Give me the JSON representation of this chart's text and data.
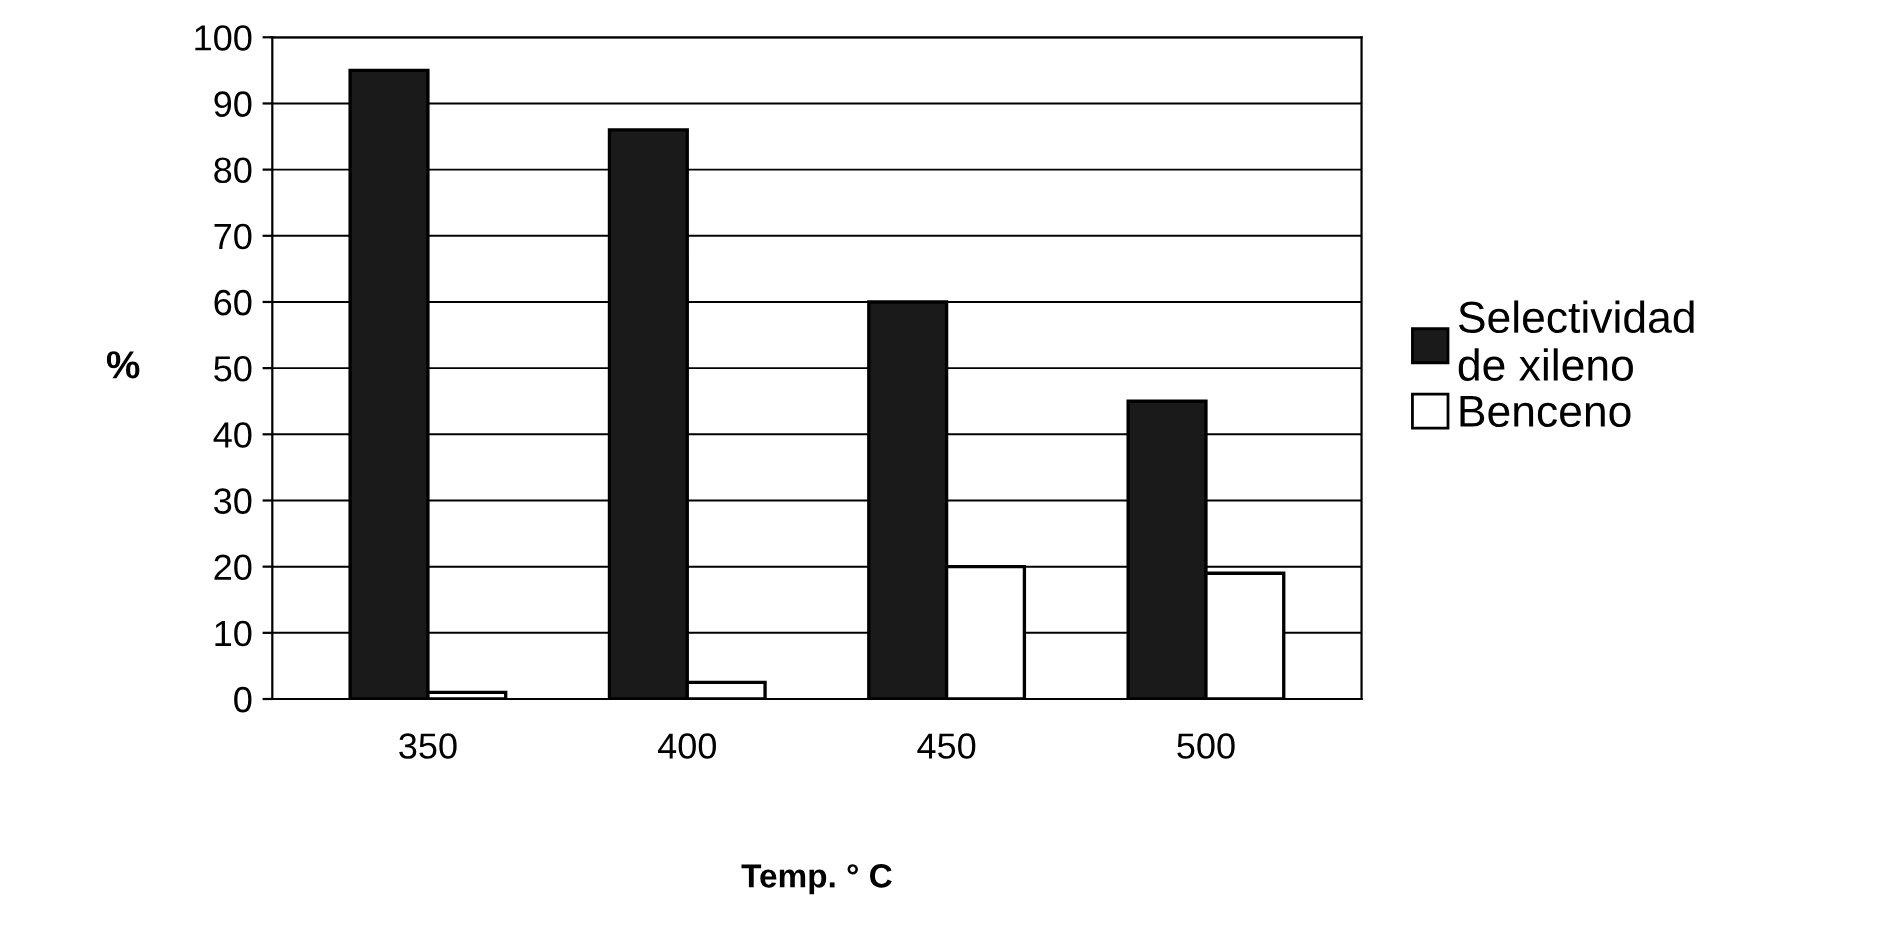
{
  "chart_data": {
    "type": "bar",
    "xlabel": "Temp. ° C",
    "ylabel": "%",
    "categories": [
      "350",
      "400",
      "450",
      "500"
    ],
    "series": [
      {
        "name": "Selectividad\nde xileno",
        "color": "#1a1a1a",
        "values": [
          95,
          86,
          60,
          45
        ]
      },
      {
        "name": "Benceno",
        "color": "#ffffff",
        "values": [
          1,
          2.5,
          20,
          19
        ]
      }
    ],
    "ylim": [
      0,
      100
    ],
    "yticks": [
      0,
      10,
      20,
      30,
      40,
      50,
      60,
      70,
      80,
      90,
      100
    ],
    "grid": "y",
    "legend": "right"
  }
}
